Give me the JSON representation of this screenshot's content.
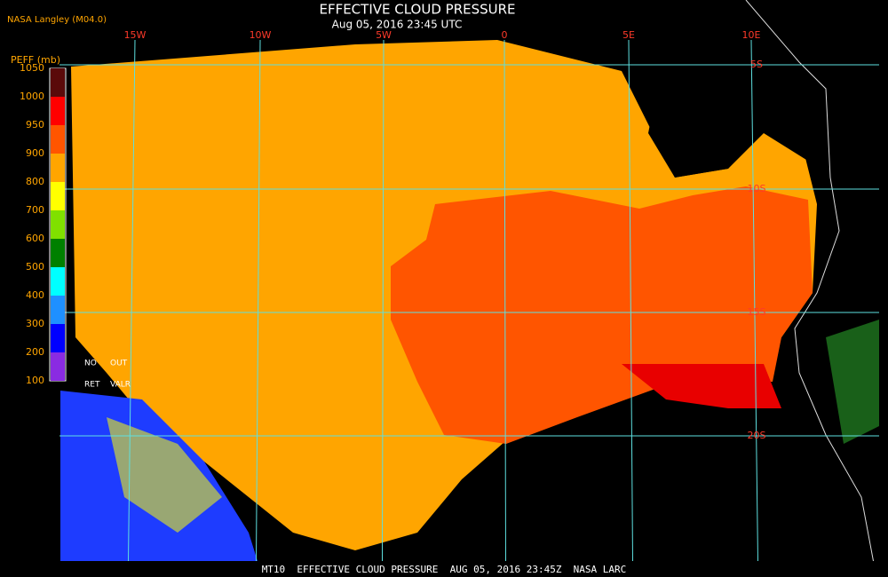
{
  "header": {
    "title": "EFFECTIVE CLOUD PRESSURE",
    "subtitle": "Aug 05, 2016 23:45 UTC",
    "source": "NASA Langley (M04.0)"
  },
  "legend": {
    "title": "PEFF (mb)",
    "levels": [
      1050,
      1000,
      950,
      900,
      800,
      700,
      600,
      500,
      400,
      300,
      200,
      100
    ],
    "colors": [
      "#5a0a0a",
      "#ff0000",
      "#ff5500",
      "#ffa500",
      "#ffff00",
      "#80e000",
      "#008000",
      "#00ffff",
      "#1e90ff",
      "#0000ff",
      "#8a2be2"
    ],
    "notes": [
      "NO",
      "OUT",
      "RET",
      "VALR"
    ]
  },
  "grid": {
    "longitudes": [
      "15W",
      "10W",
      "5W",
      "0",
      "5E",
      "10E"
    ],
    "latitudes": [
      "5S",
      "10S",
      "15S",
      "20S"
    ]
  },
  "footer": "MT10  EFFECTIVE CLOUD PRESSURE  AUG 05, 2016 23:45Z  NASA LARC"
}
